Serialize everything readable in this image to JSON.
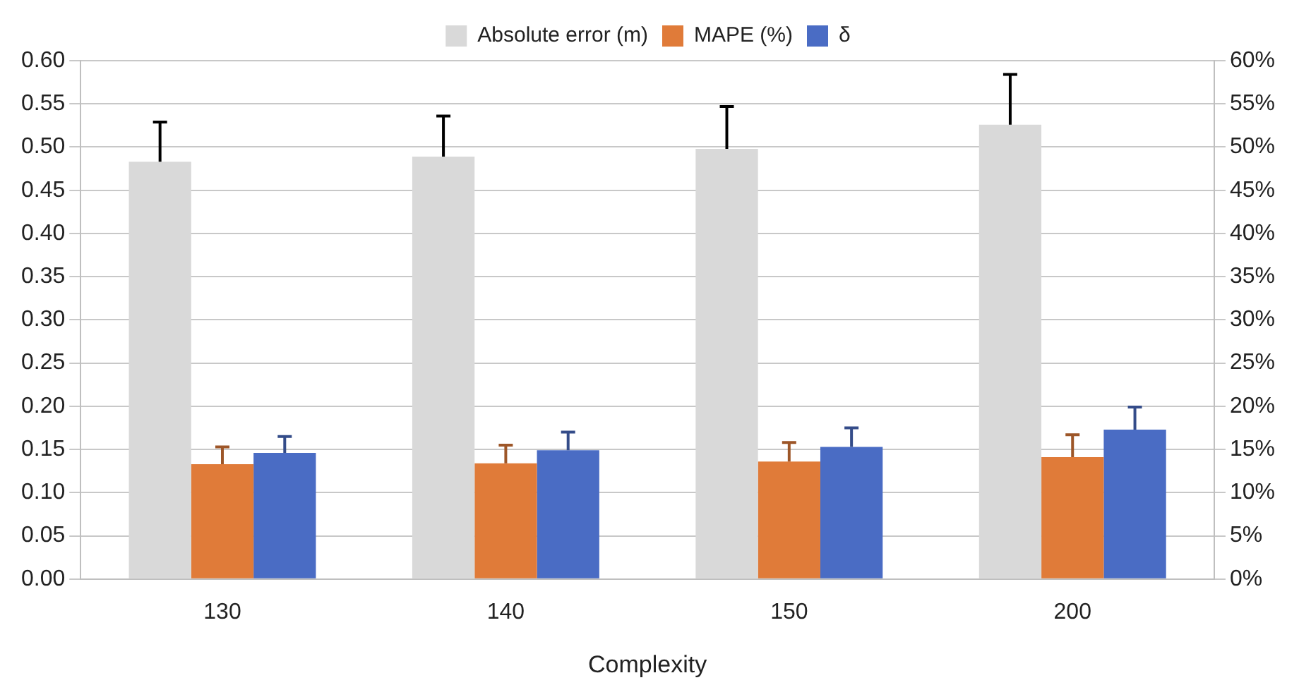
{
  "chart_data": {
    "type": "bar",
    "xlabel": "Complexity",
    "categories": [
      "130",
      "140",
      "150",
      "200"
    ],
    "series": [
      {
        "name": "Absolute error (m)",
        "color": "#d9d9d9",
        "values": [
          0.483,
          0.489,
          0.498,
          0.526
        ],
        "errors": [
          [
            0.483,
            0.529
          ],
          [
            0.489,
            0.536
          ],
          [
            0.498,
            0.547
          ],
          [
            0.526,
            0.584
          ]
        ]
      },
      {
        "name": "MAPE (%)",
        "color": "#e07b39",
        "axis": "y2",
        "values": [
          13.3,
          13.4,
          13.6,
          14.1
        ],
        "errors": [
          [
            13.3,
            15.3
          ],
          [
            13.4,
            15.5
          ],
          [
            13.6,
            15.8
          ],
          [
            14.1,
            16.7
          ]
        ]
      },
      {
        "name": "δ",
        "color": "#4a6cc4",
        "values": [
          0.146,
          0.149,
          0.153,
          0.173
        ],
        "errors": [
          [
            0.146,
            0.165
          ],
          [
            0.149,
            0.17
          ],
          [
            0.153,
            0.175
          ],
          [
            0.173,
            0.199
          ]
        ]
      }
    ],
    "ylim": [
      0,
      0.6
    ],
    "yticks": [
      {
        "value": 0,
        "label": "0.00"
      },
      {
        "value": 0.05,
        "label": "0.05"
      },
      {
        "value": 0.1,
        "label": "0.10"
      },
      {
        "value": 0.15,
        "label": "0.15"
      },
      {
        "value": 0.2,
        "label": "0.20"
      },
      {
        "value": 0.25,
        "label": "0.25"
      },
      {
        "value": 0.3,
        "label": "0.30"
      },
      {
        "value": 0.35,
        "label": "0.35"
      },
      {
        "value": 0.4,
        "label": "0.40"
      },
      {
        "value": 0.45,
        "label": "0.45"
      },
      {
        "value": 0.5,
        "label": "0.50"
      },
      {
        "value": 0.55,
        "label": "0.55"
      },
      {
        "value": 0.6,
        "label": "0.60"
      }
    ],
    "y2lim": [
      0,
      60
    ],
    "y2ticks": [
      {
        "value": 0,
        "label": "0%"
      },
      {
        "value": 5,
        "label": "5%"
      },
      {
        "value": 10,
        "label": "10%"
      },
      {
        "value": 15,
        "label": "15%"
      },
      {
        "value": 20,
        "label": "20%"
      },
      {
        "value": 25,
        "label": "25%"
      },
      {
        "value": 30,
        "label": "30%"
      },
      {
        "value": 35,
        "label": "35%"
      },
      {
        "value": 40,
        "label": "40%"
      },
      {
        "value": 45,
        "label": "45%"
      },
      {
        "value": 50,
        "label": "50%"
      },
      {
        "value": 55,
        "label": "55%"
      },
      {
        "value": 60,
        "label": "60%"
      }
    ],
    "grid": "y",
    "legend": "top"
  }
}
